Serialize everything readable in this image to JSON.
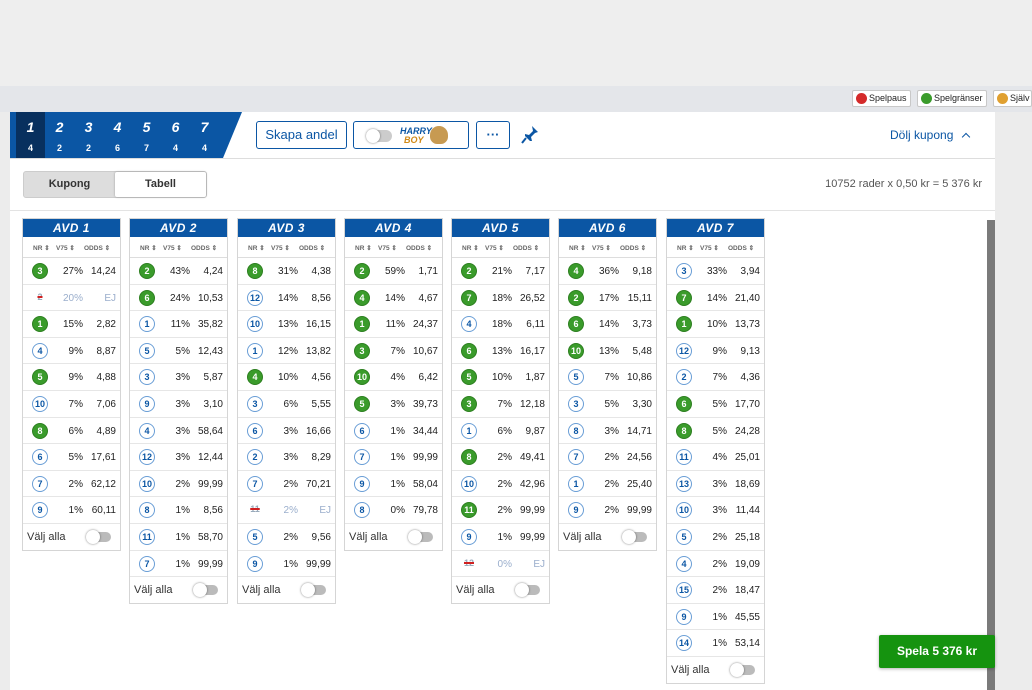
{
  "status_buttons": [
    {
      "label": "Spelpaus",
      "icon": "pause-icon",
      "color": "#d42a2a"
    },
    {
      "label": "Spelgränser",
      "icon": "limits-icon",
      "color": "#3a9b2b"
    },
    {
      "label": "Själv",
      "icon": "selftest-icon",
      "color": "#e0a030"
    }
  ],
  "coupon": {
    "legs": [
      {
        "num": "1",
        "count": "4"
      },
      {
        "num": "2",
        "count": "2"
      },
      {
        "num": "3",
        "count": "2"
      },
      {
        "num": "4",
        "count": "6"
      },
      {
        "num": "5",
        "count": "7"
      },
      {
        "num": "6",
        "count": "4"
      },
      {
        "num": "7",
        "count": "4"
      }
    ]
  },
  "toolbar": {
    "share_label": "Skapa andel",
    "harry_text_1": "HARRY",
    "harry_text_2": "BOY",
    "more_label": "···",
    "hide_label": "Dölj kupong"
  },
  "view_toggle": {
    "kupong": "Kupong",
    "tabell": "Tabell"
  },
  "summary": "10752 rader x 0,50 kr = 5 376 kr",
  "headers": {
    "nr": "NR ⇕",
    "v75": "V75 ⇕",
    "odds": "ODDS ⇕"
  },
  "select_all_label": "Välj alla",
  "play_label": "Spela 5 376 kr",
  "avd": [
    {
      "title": "AVD 1",
      "rows": [
        {
          "nr": "3",
          "pct": "27%",
          "odds": "14,24",
          "sel": true
        },
        {
          "nr": "2",
          "pct": "20%",
          "odds": "EJ",
          "scratched": true
        },
        {
          "nr": "1",
          "pct": "15%",
          "odds": "2,82",
          "sel": true
        },
        {
          "nr": "4",
          "pct": "9%",
          "odds": "8,87"
        },
        {
          "nr": "5",
          "pct": "9%",
          "odds": "4,88",
          "sel": true
        },
        {
          "nr": "10",
          "pct": "7%",
          "odds": "7,06"
        },
        {
          "nr": "8",
          "pct": "6%",
          "odds": "4,89",
          "sel": true
        },
        {
          "nr": "6",
          "pct": "5%",
          "odds": "17,61"
        },
        {
          "nr": "7",
          "pct": "2%",
          "odds": "62,12"
        },
        {
          "nr": "9",
          "pct": "1%",
          "odds": "60,11"
        }
      ]
    },
    {
      "title": "AVD 2",
      "rows": [
        {
          "nr": "2",
          "pct": "43%",
          "odds": "4,24",
          "sel": true
        },
        {
          "nr": "6",
          "pct": "24%",
          "odds": "10,53",
          "sel": true
        },
        {
          "nr": "1",
          "pct": "11%",
          "odds": "35,82"
        },
        {
          "nr": "5",
          "pct": "5%",
          "odds": "12,43"
        },
        {
          "nr": "3",
          "pct": "3%",
          "odds": "5,87"
        },
        {
          "nr": "9",
          "pct": "3%",
          "odds": "3,10"
        },
        {
          "nr": "4",
          "pct": "3%",
          "odds": "58,64"
        },
        {
          "nr": "12",
          "pct": "3%",
          "odds": "12,44"
        },
        {
          "nr": "10",
          "pct": "2%",
          "odds": "99,99"
        },
        {
          "nr": "8",
          "pct": "1%",
          "odds": "8,56"
        },
        {
          "nr": "11",
          "pct": "1%",
          "odds": "58,70"
        },
        {
          "nr": "7",
          "pct": "1%",
          "odds": "99,99"
        }
      ]
    },
    {
      "title": "AVD 3",
      "rows": [
        {
          "nr": "8",
          "pct": "31%",
          "odds": "4,38",
          "sel": true
        },
        {
          "nr": "12",
          "pct": "14%",
          "odds": "8,56"
        },
        {
          "nr": "10",
          "pct": "13%",
          "odds": "16,15"
        },
        {
          "nr": "1",
          "pct": "12%",
          "odds": "13,82"
        },
        {
          "nr": "4",
          "pct": "10%",
          "odds": "4,56",
          "sel": true
        },
        {
          "nr": "3",
          "pct": "6%",
          "odds": "5,55"
        },
        {
          "nr": "6",
          "pct": "3%",
          "odds": "16,66"
        },
        {
          "nr": "2",
          "pct": "3%",
          "odds": "8,29"
        },
        {
          "nr": "7",
          "pct": "2%",
          "odds": "70,21"
        },
        {
          "nr": "11",
          "pct": "2%",
          "odds": "EJ",
          "scratched": true
        },
        {
          "nr": "5",
          "pct": "2%",
          "odds": "9,56"
        },
        {
          "nr": "9",
          "pct": "1%",
          "odds": "99,99"
        }
      ]
    },
    {
      "title": "AVD 4",
      "rows": [
        {
          "nr": "2",
          "pct": "59%",
          "odds": "1,71",
          "sel": true
        },
        {
          "nr": "4",
          "pct": "14%",
          "odds": "4,67",
          "sel": true
        },
        {
          "nr": "1",
          "pct": "11%",
          "odds": "24,37",
          "sel": true
        },
        {
          "nr": "3",
          "pct": "7%",
          "odds": "10,67",
          "sel": true
        },
        {
          "nr": "10",
          "pct": "4%",
          "odds": "6,42",
          "sel": true
        },
        {
          "nr": "5",
          "pct": "3%",
          "odds": "39,73",
          "sel": true
        },
        {
          "nr": "6",
          "pct": "1%",
          "odds": "34,44"
        },
        {
          "nr": "7",
          "pct": "1%",
          "odds": "99,99"
        },
        {
          "nr": "9",
          "pct": "1%",
          "odds": "58,04"
        },
        {
          "nr": "8",
          "pct": "0%",
          "odds": "79,78"
        }
      ]
    },
    {
      "title": "AVD 5",
      "rows": [
        {
          "nr": "2",
          "pct": "21%",
          "odds": "7,17",
          "sel": true
        },
        {
          "nr": "7",
          "pct": "18%",
          "odds": "26,52",
          "sel": true
        },
        {
          "nr": "4",
          "pct": "18%",
          "odds": "6,11"
        },
        {
          "nr": "6",
          "pct": "13%",
          "odds": "16,17",
          "sel": true
        },
        {
          "nr": "5",
          "pct": "10%",
          "odds": "1,87",
          "sel": true
        },
        {
          "nr": "3",
          "pct": "7%",
          "odds": "12,18",
          "sel": true
        },
        {
          "nr": "1",
          "pct": "6%",
          "odds": "9,87"
        },
        {
          "nr": "8",
          "pct": "2%",
          "odds": "49,41",
          "sel": true
        },
        {
          "nr": "10",
          "pct": "2%",
          "odds": "42,96"
        },
        {
          "nr": "11",
          "pct": "2%",
          "odds": "99,99",
          "sel": true
        },
        {
          "nr": "9",
          "pct": "1%",
          "odds": "99,99"
        },
        {
          "nr": "12",
          "pct": "0%",
          "odds": "EJ",
          "scratched": true
        }
      ]
    },
    {
      "title": "AVD 6",
      "rows": [
        {
          "nr": "4",
          "pct": "36%",
          "odds": "9,18",
          "sel": true
        },
        {
          "nr": "2",
          "pct": "17%",
          "odds": "15,11",
          "sel": true
        },
        {
          "nr": "6",
          "pct": "14%",
          "odds": "3,73",
          "sel": true
        },
        {
          "nr": "10",
          "pct": "13%",
          "odds": "5,48",
          "sel": true
        },
        {
          "nr": "5",
          "pct": "7%",
          "odds": "10,86"
        },
        {
          "nr": "3",
          "pct": "5%",
          "odds": "3,30"
        },
        {
          "nr": "8",
          "pct": "3%",
          "odds": "14,71"
        },
        {
          "nr": "7",
          "pct": "2%",
          "odds": "24,56"
        },
        {
          "nr": "1",
          "pct": "2%",
          "odds": "25,40"
        },
        {
          "nr": "9",
          "pct": "2%",
          "odds": "99,99"
        }
      ]
    },
    {
      "title": "AVD 7",
      "rows": [
        {
          "nr": "3",
          "pct": "33%",
          "odds": "3,94"
        },
        {
          "nr": "7",
          "pct": "14%",
          "odds": "21,40",
          "sel": true
        },
        {
          "nr": "1",
          "pct": "10%",
          "odds": "13,73",
          "sel": true
        },
        {
          "nr": "12",
          "pct": "9%",
          "odds": "9,13"
        },
        {
          "nr": "2",
          "pct": "7%",
          "odds": "4,36"
        },
        {
          "nr": "6",
          "pct": "5%",
          "odds": "17,70",
          "sel": true
        },
        {
          "nr": "8",
          "pct": "5%",
          "odds": "24,28",
          "sel": true
        },
        {
          "nr": "11",
          "pct": "4%",
          "odds": "25,01"
        },
        {
          "nr": "13",
          "pct": "3%",
          "odds": "18,69"
        },
        {
          "nr": "10",
          "pct": "3%",
          "odds": "11,44"
        },
        {
          "nr": "5",
          "pct": "2%",
          "odds": "25,18"
        },
        {
          "nr": "4",
          "pct": "2%",
          "odds": "19,09"
        },
        {
          "nr": "15",
          "pct": "2%",
          "odds": "18,47"
        },
        {
          "nr": "9",
          "pct": "1%",
          "odds": "45,55"
        },
        {
          "nr": "14",
          "pct": "1%",
          "odds": "53,14"
        }
      ]
    }
  ]
}
